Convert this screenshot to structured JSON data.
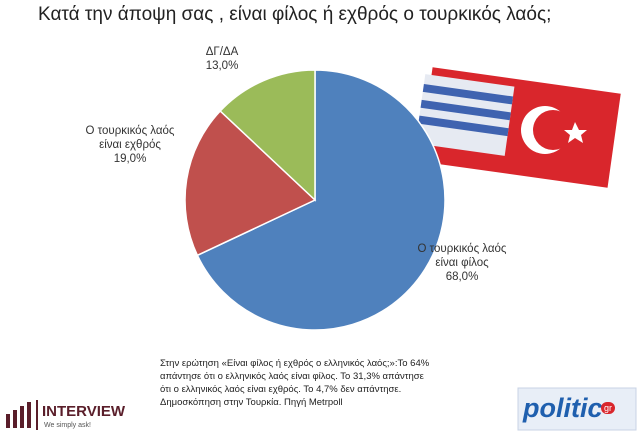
{
  "chart_data": {
    "type": "pie",
    "title": "Κατά την άποψη σας , είναι φίλος ή εχθρός ο τουρκικός λαός;",
    "categories": [
      "Ο τουρκικός λαός είναι φίλος",
      "Ο τουρκικός λαός είναι εχθρός",
      "ΔΓ/ΔΑ"
    ],
    "values": [
      68,
      19,
      13
    ],
    "value_labels": [
      "68,0%",
      "19,0%",
      "13,0%"
    ],
    "colors": [
      "#4f81bd",
      "#c0504d",
      "#9bbb59"
    ],
    "footnote": [
      "Στην ερώτηση «Είναι φίλος ή εχθρός ο ελληνικός λαός;»:Το 64%",
      "απάντησε ότι ο ελληνικός λαός είναι φίλος. Το 31,3% απάντησε",
      "ότι ο ελληνικός λαός είναι εχθρός. Το 4,7% δεν απάντησε.",
      "Δημοσκόπηση στην Τουρκία. Πηγή Metrpoll"
    ]
  },
  "logos": {
    "interview": "INTERVIEW",
    "interview_tagline": "We simply ask!",
    "politic": "politic",
    "politic_badge": "gr"
  }
}
